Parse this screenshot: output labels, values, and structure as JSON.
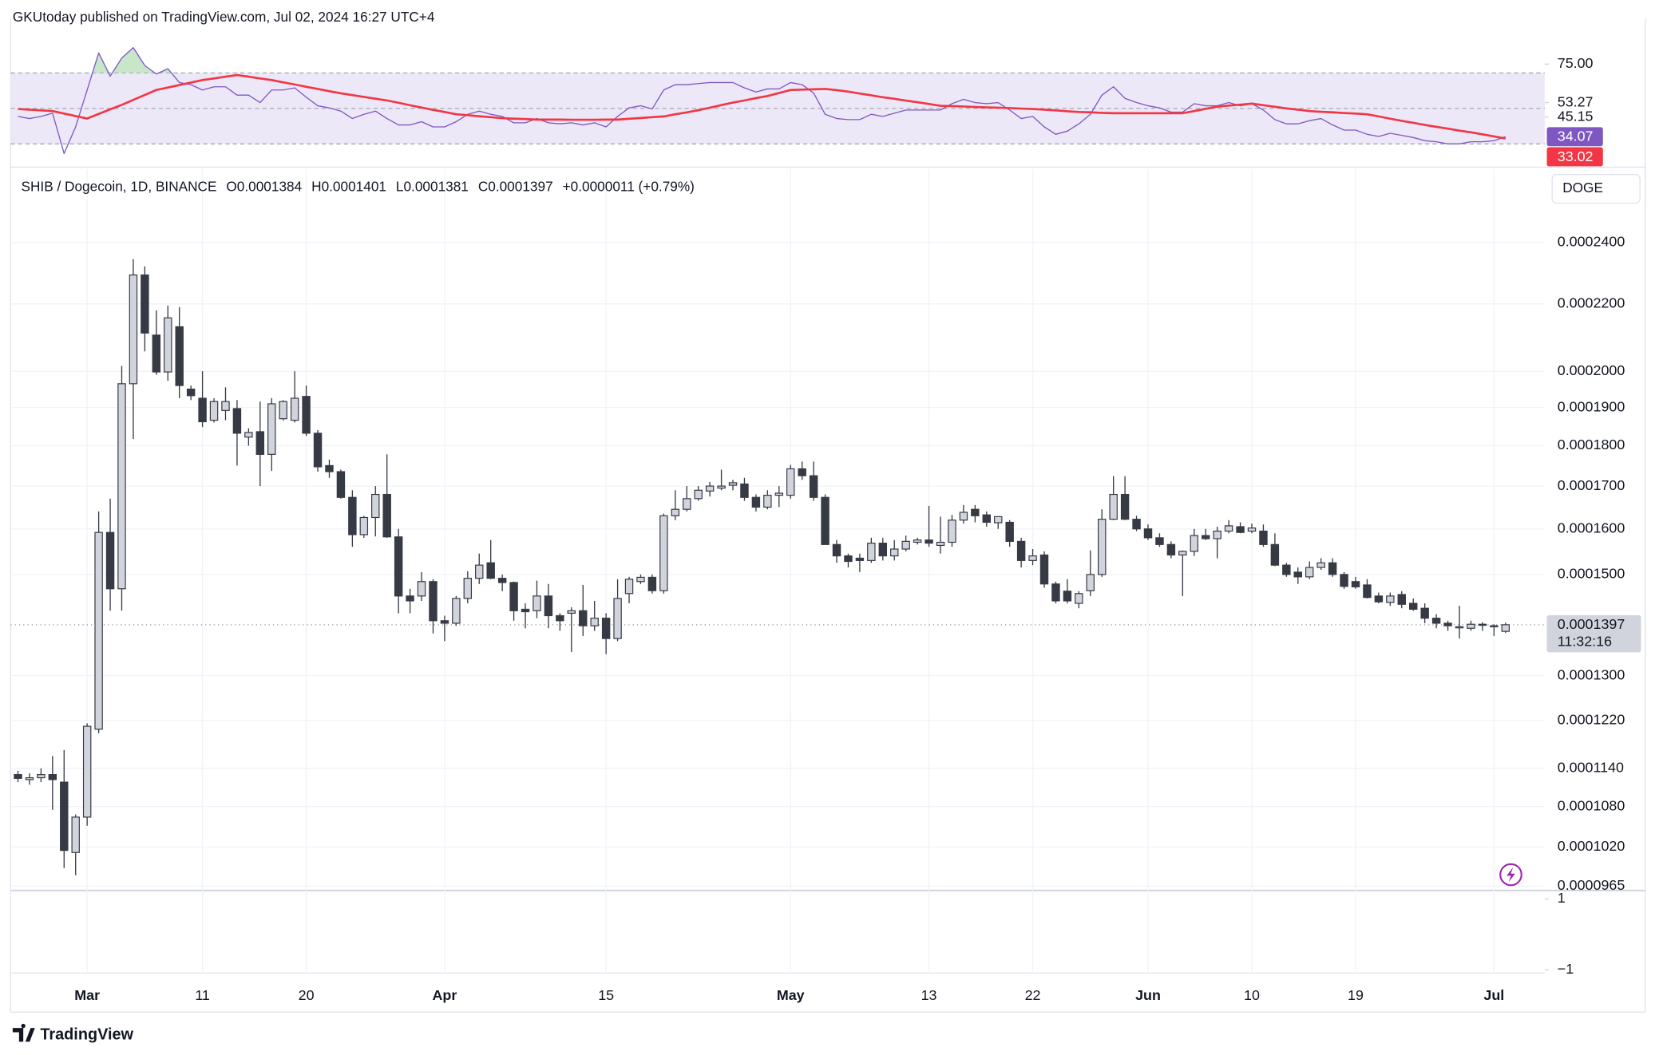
{
  "header": {
    "published": "GKUtoday published on TradingView.com, Jul 02, 2024 16:27 UTC+4"
  },
  "footer": {
    "brand": "TradingView"
  },
  "chart_data": [
    {
      "type": "candlestick",
      "title": "SHIB / Dogecoin, 1D, BINANCE",
      "ohlc_labels": [
        "O0.0001384",
        "H0.0001401",
        "L0.0001381",
        "C0.0001397",
        "+0.0000011 (+0.79%)"
      ],
      "currency": "DOGE",
      "last_price": {
        "value": 0.0001397,
        "label": "0.0001397"
      },
      "countdown": "11:32:16",
      "up_color": "#d1d4dc",
      "down_color": "#363a45",
      "log_scale": true,
      "grid": true,
      "xlim": [
        -0.64,
        132.4
      ],
      "xticks": [
        {
          "value": 6,
          "label": "Mar"
        },
        {
          "value": 16,
          "label": "11"
        },
        {
          "value": 25,
          "label": "20"
        },
        {
          "value": 37,
          "label": "Apr"
        },
        {
          "value": 51,
          "label": "15"
        },
        {
          "value": 67,
          "label": "May"
        },
        {
          "value": 79,
          "label": "13"
        },
        {
          "value": 88,
          "label": "22"
        },
        {
          "value": 98,
          "label": "Jun"
        },
        {
          "value": 107,
          "label": "10"
        },
        {
          "value": 116,
          "label": "19"
        },
        {
          "value": 128,
          "label": "Jul"
        }
      ],
      "ylim": [
        9.59e-05,
        0.0002662
      ],
      "yticks": [
        {
          "value": 0.00024,
          "label": "0.0002400"
        },
        {
          "value": 0.00022,
          "label": "0.0002200"
        },
        {
          "value": 0.0002,
          "label": "0.0002000"
        },
        {
          "value": 0.00019,
          "label": "0.0001900"
        },
        {
          "value": 0.00018,
          "label": "0.0001800"
        },
        {
          "value": 0.00017,
          "label": "0.0001700"
        },
        {
          "value": 0.00016,
          "label": "0.0001600"
        },
        {
          "value": 0.00015,
          "label": "0.0001500"
        },
        {
          "value": 0.00013,
          "label": "0.0001300"
        },
        {
          "value": 0.000122,
          "label": "0.0001220"
        },
        {
          "value": 0.000114,
          "label": "0.0001140"
        },
        {
          "value": 0.000108,
          "label": "0.0001080"
        },
        {
          "value": 0.000102,
          "label": "0.0001020"
        },
        {
          "value": 9.65e-05,
          "label": "0.0000965"
        }
      ],
      "open": [
        0.000113,
        0.0001122,
        0.0001125,
        0.000113,
        0.0001118,
        0.0001012,
        0.0001064,
        0.0001205,
        0.0001592,
        0.000147,
        0.0001965,
        0.0002292,
        0.0002105,
        0.0001998,
        0.000213,
        0.000195,
        0.0001925,
        0.0001866,
        0.0001892,
        0.0001897,
        0.0001822,
        0.0001836,
        0.0001778,
        0.000187,
        0.0001866,
        0.000193,
        0.0001832,
        0.000175,
        0.0001735,
        0.0001673,
        0.0001587,
        0.0001626,
        0.000168,
        0.0001582,
        0.0001455,
        0.0001455,
        0.0001485,
        0.0001405,
        0.00014,
        0.000145,
        0.0001492,
        0.0001525,
        0.0001492,
        0.0001483,
        0.0001428,
        0.0001425,
        0.0001455,
        0.0001415,
        0.000142,
        0.0001425,
        0.0001395,
        0.000141,
        0.000137,
        0.000146,
        0.0001485,
        0.0001494,
        0.0001466,
        0.000163,
        0.0001645,
        0.000167,
        0.0001688,
        0.0001695,
        0.0001702,
        0.0001705,
        0.0001673,
        0.000165,
        0.0001678,
        0.0001678,
        0.0001742,
        0.0001725,
        0.0001673,
        0.0001565,
        0.000154,
        0.0001535,
        0.000153,
        0.0001568,
        0.000154,
        0.0001555,
        0.000157,
        0.0001575,
        0.0001563,
        0.000157,
        0.000162,
        0.0001645,
        0.0001632,
        0.0001614,
        0.0001615,
        0.0001572,
        0.000153,
        0.0001542,
        0.000148,
        0.0001465,
        0.000144,
        0.0001466,
        0.00015,
        0.0001622,
        0.000168,
        0.0001622,
        0.00016,
        0.000158,
        0.0001565,
        0.0001542,
        0.000155,
        0.0001585,
        0.0001578,
        0.0001595,
        0.0001605,
        0.0001595,
        0.0001595,
        0.0001565,
        0.000152,
        0.0001505,
        0.0001495,
        0.0001515,
        0.0001525,
        0.00015,
        0.0001485,
        0.0001478,
        0.0001455,
        0.0001442,
        0.0001458,
        0.000144,
        0.000143,
        0.000141,
        0.00014,
        0.0001392,
        0.000139,
        0.0001398,
        0.0001393,
        0.0001384
      ],
      "high": [
        0.0001136,
        0.0001132,
        0.000114,
        0.000116,
        0.000117,
        0.0001068,
        0.0001215,
        0.000164,
        0.000167,
        0.0002015,
        0.0002344,
        0.000232,
        0.000218,
        0.0002195,
        0.000219,
        0.000196,
        0.0002,
        0.0001925,
        0.0001955,
        0.000192,
        0.0001845,
        0.0001916,
        0.0001925,
        0.000192,
        0.0002,
        0.000196,
        0.000184,
        0.0001765,
        0.000174,
        0.000169,
        0.000163,
        0.00017,
        0.0001778,
        0.00016,
        0.000147,
        0.0001505,
        0.000149,
        0.0001415,
        0.0001455,
        0.0001507,
        0.0001545,
        0.0001575,
        0.00015,
        0.0001485,
        0.000144,
        0.0001487,
        0.000148,
        0.000142,
        0.0001432,
        0.0001478,
        0.0001445,
        0.000142,
        0.000149,
        0.0001495,
        0.00015,
        0.00015,
        0.0001635,
        0.000169,
        0.00017,
        0.00017,
        0.000171,
        0.000174,
        0.0001715,
        0.000172,
        0.000168,
        0.000169,
        0.00017,
        0.0001752,
        0.000176,
        0.000176,
        0.000168,
        0.0001575,
        0.0001545,
        0.0001545,
        0.000158,
        0.000158,
        0.0001575,
        0.0001585,
        0.000158,
        0.0001653,
        0.0001628,
        0.0001632,
        0.0001655,
        0.0001655,
        0.000164,
        0.0001628,
        0.000162,
        0.000158,
        0.0001555,
        0.000155,
        0.0001485,
        0.000149,
        0.0001465,
        0.0001552,
        0.0001645,
        0.0001724,
        0.0001724,
        0.000163,
        0.000161,
        0.000159,
        0.0001572,
        0.0001552,
        0.00016,
        0.00016,
        0.0001605,
        0.000162,
        0.0001615,
        0.0001612,
        0.000161,
        0.000159,
        0.0001525,
        0.0001515,
        0.0001528,
        0.0001535,
        0.0001535,
        0.0001505,
        0.0001495,
        0.000149,
        0.0001462,
        0.0001462,
        0.0001465,
        0.000145,
        0.000144,
        0.0001418,
        0.0001405,
        0.0001435,
        0.0001405,
        0.0001402,
        0.0001398,
        0.0001401
      ],
      "low": [
        0.0001118,
        0.0001114,
        0.0001118,
        0.0001075,
        9.9e-05,
        9.8e-05,
        0.0001051,
        0.0001198,
        0.0001425,
        0.0001425,
        0.0001817,
        0.0002057,
        0.000199,
        0.0001973,
        0.0001925,
        0.000192,
        0.0001848,
        0.000186,
        0.0001866,
        0.000175,
        0.00018,
        0.00017,
        0.0001737,
        0.0001865,
        0.000186,
        0.0001825,
        0.0001735,
        0.000172,
        0.000167,
        0.000156,
        0.000158,
        0.0001583,
        0.000158,
        0.000142,
        0.000142,
        0.0001445,
        0.000138,
        0.0001365,
        0.0001395,
        0.000144,
        0.000148,
        0.000149,
        0.0001465,
        0.0001405,
        0.000139,
        0.000141,
        0.000139,
        0.0001385,
        0.0001344,
        0.0001375,
        0.0001385,
        0.000134,
        0.0001365,
        0.000144,
        0.000148,
        0.000146,
        0.000146,
        0.000162,
        0.000164,
        0.0001665,
        0.0001675,
        0.000169,
        0.000169,
        0.0001665,
        0.000164,
        0.0001645,
        0.000165,
        0.000167,
        0.0001715,
        0.0001665,
        0.0001565,
        0.0001525,
        0.0001515,
        0.0001505,
        0.0001525,
        0.000153,
        0.000153,
        0.000155,
        0.0001565,
        0.000156,
        0.0001545,
        0.000156,
        0.0001612,
        0.0001615,
        0.0001605,
        0.00016,
        0.000156,
        0.0001515,
        0.000152,
        0.0001472,
        0.000144,
        0.000144,
        0.000143,
        0.0001455,
        0.0001495,
        0.000162,
        0.000162,
        0.0001595,
        0.0001575,
        0.000156,
        0.0001535,
        0.0001455,
        0.000154,
        0.0001575,
        0.0001535,
        0.000159,
        0.000159,
        0.000159,
        0.000156,
        0.0001518,
        0.0001495,
        0.000148,
        0.000149,
        0.000151,
        0.0001495,
        0.000147,
        0.000147,
        0.000145,
        0.000144,
        0.0001435,
        0.000143,
        0.0001425,
        0.00014,
        0.000139,
        0.0001385,
        0.000137,
        0.0001385,
        0.0001385,
        0.0001375,
        0.0001381
      ],
      "close": [
        0.0001124,
        0.0001125,
        0.000113,
        0.0001122,
        0.0001015,
        0.0001064,
        0.000121,
        0.0001592,
        0.000147,
        0.0001965,
        0.0002292,
        0.0002111,
        0.0001998,
        0.0002157,
        0.000196,
        0.0001932,
        0.0001862,
        0.0001916,
        0.0001916,
        0.0001832,
        0.0001834,
        0.0001778,
        0.000191,
        0.0001916,
        0.0001925,
        0.0001832,
        0.0001747,
        0.0001735,
        0.0001673,
        0.0001587,
        0.0001626,
        0.000168,
        0.0001582,
        0.0001455,
        0.0001445,
        0.0001485,
        0.0001405,
        0.00014,
        0.000145,
        0.0001492,
        0.000152,
        0.0001492,
        0.0001483,
        0.0001425,
        0.0001423,
        0.0001455,
        0.0001415,
        0.0001405,
        0.0001425,
        0.0001395,
        0.000141,
        0.000137,
        0.000145,
        0.000149,
        0.0001494,
        0.0001466,
        0.000163,
        0.0001645,
        0.000167,
        0.000169,
        0.00017,
        0.00017,
        0.0001708,
        0.0001673,
        0.000165,
        0.0001678,
        0.0001683,
        0.0001742,
        0.0001725,
        0.0001673,
        0.0001565,
        0.000154,
        0.0001528,
        0.000153,
        0.0001568,
        0.000154,
        0.0001555,
        0.0001572,
        0.0001575,
        0.0001568,
        0.000157,
        0.000162,
        0.0001638,
        0.000163,
        0.0001615,
        0.0001628,
        0.0001572,
        0.000153,
        0.000154,
        0.000148,
        0.0001445,
        0.0001445,
        0.000146,
        0.00015,
        0.0001622,
        0.000168,
        0.0001622,
        0.00016,
        0.000158,
        0.0001565,
        0.0001542,
        0.000155,
        0.0001585,
        0.0001578,
        0.0001595,
        0.0001607,
        0.0001592,
        0.0001602,
        0.0001565,
        0.000152,
        0.00015,
        0.0001495,
        0.0001515,
        0.0001525,
        0.00015,
        0.0001475,
        0.0001474,
        0.0001452,
        0.0001443,
        0.0001455,
        0.0001438,
        0.0001428,
        0.000141,
        0.00014,
        0.0001395,
        0.0001393,
        0.0001398,
        0.0001396,
        0.0001395,
        0.0001397
      ]
    },
    {
      "type": "line",
      "ylim": [
        16.9,
        100.4
      ],
      "yticks": [
        {
          "value": 75,
          "label": "75.00"
        },
        53.27,
        45.15
      ],
      "levels": [
        70,
        50,
        30
      ],
      "band_color": "#ede8f7",
      "overbought_color": "#c8e6c9",
      "series": [
        {
          "color": "#7e57c2",
          "values": [
            45.5,
            44.3,
            45.5,
            47.3,
            24.6,
            39.6,
            60.4,
            81.3,
            68.2,
            78.4,
            84.3,
            74.2,
            69.4,
            72.4,
            64.6,
            63.4,
            60.4,
            62.2,
            62.2,
            57.5,
            57.5,
            53.3,
            60.4,
            60.4,
            61.6,
            56.3,
            51.5,
            50.3,
            48.5,
            44.3,
            46.7,
            48.5,
            44.3,
            40.7,
            40.7,
            42.5,
            39.6,
            39.6,
            42.5,
            46.7,
            48.5,
            46.7,
            45.5,
            41.9,
            41.9,
            44.3,
            41.9,
            41.3,
            41.9,
            40.7,
            41.9,
            39.6,
            45.5,
            50.3,
            51.5,
            49.7,
            60.4,
            63.4,
            63.4,
            64.0,
            64.6,
            64.6,
            64.6,
            61.6,
            59.3,
            61.0,
            61.0,
            64.6,
            63.4,
            58.7,
            46.7,
            44.3,
            43.7,
            43.7,
            46.7,
            45.5,
            47.3,
            49.1,
            49.1,
            49.1,
            49.1,
            52.7,
            55.1,
            53.3,
            52.7,
            53.3,
            49.1,
            44.3,
            45.5,
            39.6,
            35.4,
            37.2,
            41.3,
            46.7,
            57.5,
            62.2,
            55.7,
            53.3,
            51.5,
            50.3,
            47.9,
            47.9,
            52.7,
            51.5,
            51.5,
            53.3,
            51.5,
            52.7,
            49.1,
            43.7,
            41.3,
            41.3,
            43.1,
            44.3,
            40.7,
            37.8,
            37.8,
            35.4,
            34.2,
            36.0,
            34.8,
            33.6,
            31.8,
            31.2,
            30.0,
            30.0,
            31.2,
            31.2,
            31.8,
            34.07
          ]
        },
        {
          "color": "#f23645",
          "values": [
            49.7,
            49.3,
            48.9,
            48.5,
            47.1,
            45.7,
            44.3,
            46.9,
            49.5,
            52.0,
            54.8,
            57.6,
            60.4,
            61.8,
            63.2,
            64.6,
            66.0,
            66.9,
            67.9,
            68.8,
            67.9,
            66.9,
            66.0,
            64.7,
            63.5,
            62.2,
            61.0,
            59.7,
            58.5,
            57.5,
            56.5,
            55.5,
            54.5,
            53.2,
            51.8,
            50.5,
            49.2,
            48.0,
            46.7,
            46.2,
            45.6,
            45.1,
            44.5,
            44.2,
            44.0,
            43.7,
            43.7,
            43.7,
            43.6,
            43.6,
            43.6,
            43.7,
            43.7,
            44.2,
            44.6,
            45.1,
            45.5,
            46.7,
            47.8,
            49.0,
            50.4,
            51.9,
            53.3,
            54.5,
            55.8,
            57.0,
            58.7,
            60.4,
            60.6,
            60.8,
            61.0,
            60.3,
            59.5,
            58.4,
            57.4,
            56.3,
            55.4,
            54.4,
            53.5,
            52.5,
            51.5,
            51.3,
            51.1,
            50.8,
            50.6,
            50.4,
            50.2,
            49.9,
            49.7,
            49.3,
            48.9,
            48.4,
            48.0,
            47.8,
            47.5,
            47.3,
            47.3,
            47.3,
            47.3,
            47.3,
            47.3,
            47.3,
            48.5,
            49.8,
            51.0,
            51.6,
            52.1,
            52.7,
            51.8,
            50.9,
            50.0,
            49.3,
            48.5,
            48.1,
            47.8,
            47.4,
            47.1,
            46.7,
            45.5,
            44.2,
            43.0,
            41.9,
            40.7,
            39.6,
            38.6,
            37.5,
            36.5,
            35.4,
            34.2,
            33.02
          ]
        }
      ]
    },
    {
      "type": "line",
      "ylim": [
        -1.09,
        1.21
      ],
      "yticks": [
        1,
        {
          "value": -1,
          "label": "−1"
        }
      ]
    }
  ]
}
